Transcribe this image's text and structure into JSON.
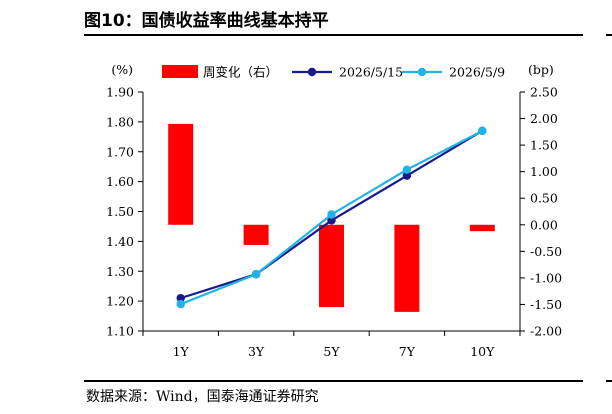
{
  "figure": {
    "title": "图10：国债收益率曲线基本持平",
    "source": "数据来源：Wind，国泰海通证券研究"
  },
  "chart_data": {
    "type": "bar+line",
    "categories": [
      "1Y",
      "3Y",
      "5Y",
      "7Y",
      "10Y"
    ],
    "left_axis": {
      "unit_label": "(%)",
      "ylim": [
        1.1,
        1.9
      ],
      "ticks": [
        "1.10",
        "1.20",
        "1.30",
        "1.40",
        "1.50",
        "1.60",
        "1.70",
        "1.80",
        "1.90"
      ]
    },
    "right_axis": {
      "unit_label": "(bp)",
      "ylim": [
        -2.0,
        2.5
      ],
      "ticks": [
        "-2.00",
        "-1.50",
        "-1.00",
        "-0.50",
        "0.00",
        "0.50",
        "1.00",
        "1.50",
        "2.00",
        "2.50"
      ]
    },
    "series": [
      {
        "name": "周变化（右）",
        "type": "bar",
        "axis": "right",
        "color": "#ff0000",
        "values": [
          1.9,
          -0.38,
          -1.55,
          -1.64,
          -0.12
        ]
      },
      {
        "name": "2026/5/15",
        "type": "line",
        "axis": "left",
        "color": "#1a1a8c",
        "values": [
          1.21,
          1.29,
          1.47,
          1.62,
          1.77
        ]
      },
      {
        "name": "2026/5/9",
        "type": "line",
        "axis": "left",
        "color": "#20b4e6",
        "values": [
          1.19,
          1.29,
          1.49,
          1.64,
          1.77
        ]
      }
    ],
    "legend_position": "top",
    "grid": false
  }
}
